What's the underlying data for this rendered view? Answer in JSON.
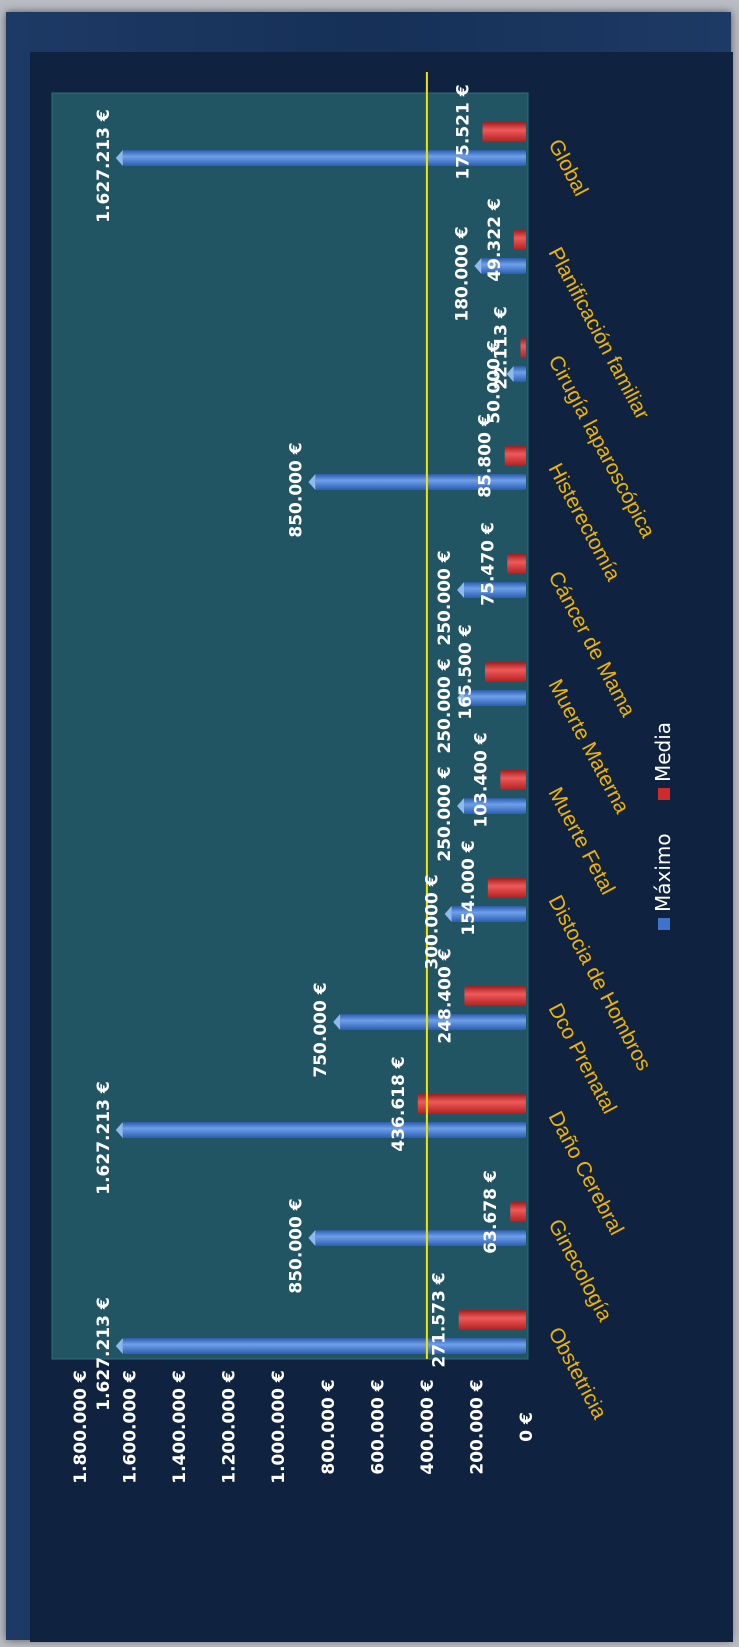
{
  "chart_data": {
    "type": "bar",
    "orientation": "rotated-90-clockwise",
    "categories": [
      "Obstetricia",
      "Ginecología",
      "Daño Cerebral",
      "Dco Prenatal",
      "Distocia de Hombros",
      "Muerte Fetal",
      "Muerte Materna",
      "Cáncer de Mama",
      "Histerectomía",
      "Cirugía laparoscópica",
      "Planificación familiar",
      "Global"
    ],
    "series": [
      {
        "name": "Máximo",
        "color": "#3d73c9",
        "values": [
          1627213,
          850000,
          1627213,
          750000,
          300000,
          250000,
          250000,
          250000,
          850000,
          50000,
          180000,
          1627213
        ],
        "labels": [
          "1.627.213 €",
          "850.000 €",
          "1.627.213 €",
          "750.000 €",
          "300.000 €",
          "250.000 €",
          "250.000 €",
          "250.000 €",
          "850.000 €",
          "50.000 €",
          "180.000 €",
          "1.627.213 €"
        ]
      },
      {
        "name": "Media",
        "color": "#d12a2a",
        "values": [
          271573,
          63678,
          436618,
          248400,
          154000,
          103400,
          165500,
          75470,
          85800,
          22113,
          49322,
          175521
        ],
        "labels": [
          "271.573 €",
          "63.678 €",
          "436.618 €",
          "248.400 €",
          "154.000 €",
          "103.400 €",
          "165.500 €",
          "75.470 €",
          "85.800 €",
          "22.113 €",
          "49.322 €",
          "175.521 €"
        ]
      }
    ],
    "y_ticks": [
      "0 €",
      "200.000 €",
      "400.000 €",
      "600.000 €",
      "800.000 €",
      "1.000.000 €",
      "1.200.000 €",
      "1.400.000 €",
      "1.600.000 €",
      "1.800.000 €"
    ],
    "ylim": [
      0,
      1800000
    ],
    "reference_line": {
      "value": 400000,
      "color": "#f2e600"
    },
    "legend_position": "bottom",
    "background_color": "#215563",
    "category_label_color": "#f0b400"
  }
}
